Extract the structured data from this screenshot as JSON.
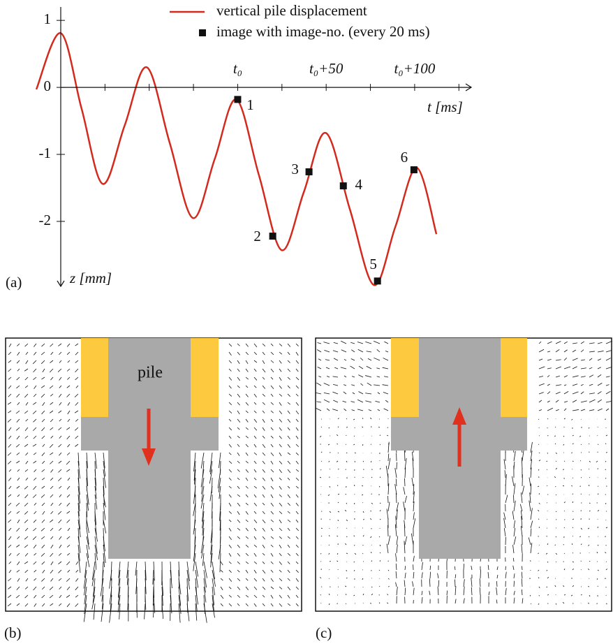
{
  "chart_data": {
    "type": "line",
    "xlabel": "t [ms]",
    "ylabel": "z [mm]",
    "panel_label": "(a)",
    "xlim": [
      -100,
      132
    ],
    "ylim": [
      -2.97,
      1.2
    ],
    "yticks": [
      1,
      0,
      -1,
      -2
    ],
    "xticks": [
      {
        "value": 0,
        "label": "t₀"
      },
      {
        "value": 50,
        "label": "t₀+50"
      },
      {
        "value": 100,
        "label": "t₀+100"
      }
    ],
    "xminorticks": [
      -75,
      -50,
      -25,
      25,
      75,
      125
    ],
    "series": [
      {
        "name": "vertical pile displacement",
        "color": "#d42a1e",
        "x": [
          -113.8,
          -100,
          -88.2,
          -76.3,
          -63.9,
          -51.4,
          -38.4,
          -25.3,
          -13.0,
          -0.8,
          12.0,
          24.9,
          37.4,
          49.8,
          63.4,
          77.0,
          89.1,
          101.2,
          112.3
        ],
        "values": [
          -0.03,
          0.81,
          -0.32,
          -1.44,
          -0.57,
          0.3,
          -0.83,
          -1.95,
          -1.07,
          -0.18,
          -1.31,
          -2.43,
          -1.56,
          -0.68,
          -1.82,
          -2.95,
          -2.08,
          -1.2,
          -2.19
        ]
      },
      {
        "name": "image with image-no. (every 20 ms)",
        "color": "#111111",
        "marker": "square",
        "x": [
          0,
          19.8,
          40.3,
          59.7,
          79.0,
          99.6
        ],
        "values": [
          -0.18,
          -2.22,
          -1.26,
          -1.47,
          -2.89,
          -1.23
        ],
        "point_labels": [
          "1",
          "2",
          "3",
          "4",
          "5",
          "6"
        ]
      }
    ]
  },
  "panels": [
    {
      "label": "(b)",
      "annotation": "pile"
    },
    {
      "label": "(c)"
    }
  ]
}
